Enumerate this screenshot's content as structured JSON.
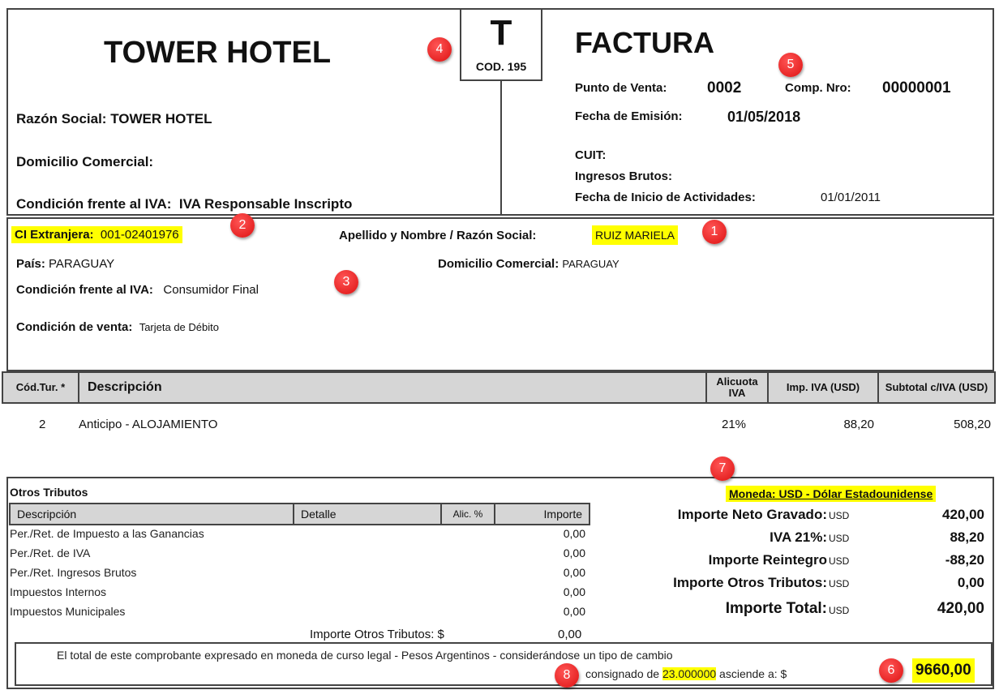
{
  "header": {
    "hotel_name": "TOWER HOTEL",
    "letter": "T",
    "cod": "COD. 195",
    "doc_type": "FACTURA",
    "razon_social_label": "Razón Social:",
    "razon_social": "TOWER HOTEL",
    "domicilio_label": "Domicilio Comercial:",
    "iva_label": "Condición frente al IVA:",
    "iva": "IVA Responsable Inscripto",
    "punto_venta_label": "Punto de Venta:",
    "punto_venta": "0002",
    "comp_label": "Comp. Nro:",
    "comp": "00000001",
    "fecha_label": "Fecha de Emisión:",
    "fecha": "01/05/2018",
    "cuit_label": "CUIT:",
    "ib_label": "Ingresos Brutos:",
    "inicio_label": "Fecha de Inicio de Actividades:",
    "inicio": "01/01/2011"
  },
  "client": {
    "ci_label": "CI Extranjera:",
    "ci": "001-02401976",
    "nombre_label": "Apellido y Nombre / Razón Social:",
    "nombre": "RUIZ MARIELA",
    "pais_label": "País:",
    "pais": "PARAGUAY",
    "domicilio_label": "Domicilio Comercial:",
    "domicilio": "PARAGUAY",
    "iva_label": "Condición frente al IVA:",
    "iva": "Consumidor Final",
    "venta_label": "Condición de venta:",
    "venta": "Tarjeta de Débito"
  },
  "items": {
    "headers": [
      "Cód.Tur. *",
      "Descripción",
      "Alicuota IVA",
      "Imp. IVA (USD)",
      "Subtotal c/IVA (USD)"
    ],
    "rows": [
      {
        "cod": "2",
        "desc": "Anticipo - ALOJAMIENTO",
        "alic": "21%",
        "iva": "88,20",
        "subtotal": "508,20"
      }
    ]
  },
  "otros": {
    "title": "Otros Tributos",
    "headers": [
      "Descripción",
      "Detalle",
      "Alic. %",
      "Importe"
    ],
    "rows": [
      {
        "desc": "Per./Ret. de Impuesto a las Ganancias",
        "importe": "0,00"
      },
      {
        "desc": "Per./Ret. de IVA",
        "importe": "0,00"
      },
      {
        "desc": "Per./Ret. Ingresos Brutos",
        "importe": "0,00"
      },
      {
        "desc": "Impuestos Internos",
        "importe": "0,00"
      },
      {
        "desc": "Impuestos Municipales",
        "importe": "0,00"
      }
    ],
    "total_label": "Importe Otros Tributos: $",
    "total": "0,00"
  },
  "totals": {
    "moneda": "Moneda: USD - Dólar Estadounidense",
    "currency": "USD",
    "rows": [
      {
        "label": "Importe Neto Gravado:",
        "value": "420,00"
      },
      {
        "label": "IVA 21%:",
        "value": "88,20"
      },
      {
        "label": "Importe Reintegro",
        "value": "-88,20"
      },
      {
        "label": "Importe Otros Tributos:",
        "value": "0,00"
      },
      {
        "label": "Importe Total:",
        "value": "420,00"
      }
    ]
  },
  "note": {
    "line1": "El total de este comprobante expresado en moneda de curso legal - Pesos Argentinos - considerándose un tipo de cambio",
    "line2a": "consignado de",
    "rate": "23.000000",
    "line2b": "asciende a: $",
    "amount": "9660,00"
  },
  "badges": [
    "1",
    "2",
    "3",
    "4",
    "5",
    "6",
    "7",
    "8"
  ],
  "colors": {
    "highlight": "#ffff00",
    "badge": "#e02020",
    "header_bg": "#d6d6d6"
  }
}
